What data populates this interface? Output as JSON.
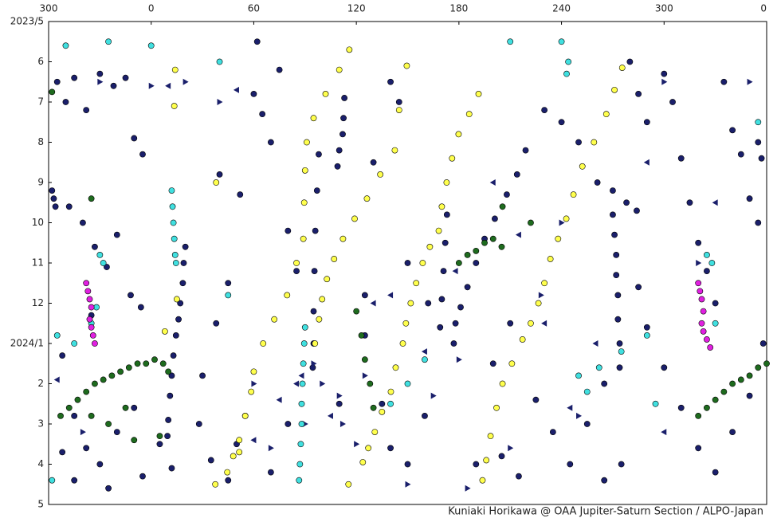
{
  "chart_data": {
    "type": "scatter",
    "caption": "Kuniaki Horikawa @ OAA Jupiter-Saturn Section / ALPO-Japan",
    "xlim": [
      -60,
      360
    ],
    "xticks": [
      {
        "value": -60,
        "label": "300"
      },
      0,
      60,
      120,
      180,
      240,
      {
        "value": 300,
        "label": "300"
      },
      {
        "value": 360,
        "label": "0"
      }
    ],
    "ylim": [
      0,
      12
    ],
    "y_inverted": true,
    "yticks": [
      {
        "value": 0,
        "label": "2023/5"
      },
      {
        "value": 1,
        "label": "6"
      },
      {
        "value": 2,
        "label": "7"
      },
      {
        "value": 3,
        "label": "8"
      },
      {
        "value": 4,
        "label": "9"
      },
      {
        "value": 5,
        "label": "10"
      },
      {
        "value": 6,
        "label": "11"
      },
      {
        "value": 7,
        "label": "12"
      },
      {
        "value": 8,
        "label": "2024/1"
      },
      {
        "value": 9,
        "label": "2"
      },
      {
        "value": 10,
        "label": "3"
      },
      {
        "value": 11,
        "label": "4"
      },
      {
        "value": 12,
        "label": "5"
      }
    ],
    "grid": false,
    "series": [
      {
        "color": "#1a1f6b",
        "marker": "circle",
        "x": [
          20,
          19,
          18.5,
          17,
          16,
          14.5,
          13,
          12,
          11,
          10,
          9.5,
          113,
          112.5,
          112,
          110,
          109,
          98,
          97,
          96,
          95.5,
          95,
          95,
          94.5,
          219,
          214,
          208,
          201,
          195,
          190,
          185,
          181,
          178,
          177,
          270,
          271,
          272,
          272,
          273,
          273,
          274,
          274,
          173,
          172,
          171,
          170,
          169,
          261,
          270,
          278,
          284,
          -58,
          -57,
          -56,
          -55,
          -50,
          -45,
          -38,
          -30,
          -22,
          -15,
          -10,
          -5,
          -48,
          -40,
          -33,
          -26,
          -20,
          -12,
          -6,
          -35,
          -52,
          -45,
          -38,
          -30,
          -20,
          -10,
          -5,
          -25,
          -45,
          -52,
          5,
          12,
          28,
          35,
          45,
          50,
          55,
          30,
          38,
          45,
          40,
          52,
          60,
          62,
          65,
          70,
          75,
          80,
          85,
          130,
          140,
          145,
          125,
          135,
          140,
          150,
          160,
          162,
          190,
          205,
          215,
          225,
          235,
          245,
          255,
          265,
          230,
          240,
          250,
          285,
          290,
          300,
          305,
          310,
          315,
          320,
          325,
          330,
          335,
          340,
          345,
          350,
          355,
          358,
          350,
          340,
          330,
          320,
          310,
          300,
          290,
          285,
          280,
          275,
          265,
          210,
          200,
          150,
          125,
          110,
          80,
          70,
          355,
          357
        ],
        "values": [
          5.6,
          6.0,
          6.5,
          7.0,
          7.4,
          7.8,
          8.3,
          8.8,
          9.3,
          9.9,
          10.3,
          1.9,
          2.4,
          2.8,
          3.2,
          3.6,
          3.3,
          4.2,
          5.2,
          6.2,
          7.2,
          8.0,
          8.6,
          3.2,
          3.8,
          4.3,
          4.9,
          5.4,
          6.0,
          6.6,
          7.1,
          7.5,
          8.0,
          4.8,
          5.3,
          5.8,
          6.3,
          6.8,
          7.4,
          8.0,
          8.6,
          4.8,
          5.5,
          6.2,
          6.9,
          7.6,
          4.0,
          4.2,
          4.5,
          4.7,
          4.2,
          4.4,
          4.6,
          1.5,
          2.0,
          1.4,
          2.2,
          1.3,
          1.6,
          1.4,
          2.9,
          3.3,
          4.6,
          5.0,
          5.6,
          6.1,
          5.3,
          6.8,
          7.1,
          7.3,
          8.3,
          9.8,
          10.6,
          11.0,
          10.2,
          9.6,
          11.3,
          11.6,
          11.4,
          10.7,
          10.5,
          11.1,
          10.0,
          10.9,
          11.4,
          10.5,
          9.8,
          8.8,
          7.5,
          6.5,
          3.8,
          4.3,
          1.8,
          0.5,
          2.3,
          3.0,
          1.2,
          5.2,
          6.2,
          3.5,
          1.5,
          2.0,
          7.8,
          9.5,
          10.6,
          11.0,
          9.8,
          7.0,
          11.0,
          10.8,
          11.3,
          9.4,
          10.2,
          11.0,
          10.0,
          9.0,
          2.2,
          2.5,
          3.0,
          1.8,
          2.5,
          1.3,
          2.0,
          3.4,
          4.5,
          5.5,
          6.2,
          7.0,
          1.5,
          2.7,
          3.3,
          4.4,
          5.0,
          8.0,
          9.3,
          10.2,
          11.2,
          10.6,
          9.6,
          8.6,
          7.6,
          6.6,
          1.0,
          11.0,
          11.4,
          7.5,
          8.5,
          6.0,
          6.8,
          9.5,
          10.0,
          11.2,
          3.0,
          3.4
        ]
      },
      {
        "color": "#1a1f6b",
        "marker": "triangle-right",
        "x": [
          -30,
          0,
          20,
          40,
          95,
          100,
          110,
          112,
          120,
          125,
          165,
          180,
          210,
          228,
          240,
          250,
          300,
          320,
          350,
          -40,
          60,
          70,
          90,
          150,
          185
        ],
        "values": [
          1.5,
          1.6,
          1.5,
          2.0,
          8.5,
          9.0,
          9.3,
          10.0,
          10.5,
          8.8,
          9.3,
          8.4,
          10.6,
          6.8,
          5.0,
          9.8,
          1.5,
          6.0,
          1.5,
          10.2,
          9.0,
          10.6,
          10.0,
          11.5,
          11.6
        ]
      },
      {
        "color": "#1a1f6b",
        "marker": "triangle-left",
        "x": [
          10,
          50,
          75,
          85,
          130,
          140,
          160,
          200,
          215,
          230,
          245,
          290,
          330,
          -55,
          60,
          88,
          105,
          178,
          260,
          300
        ],
        "values": [
          1.6,
          1.7,
          9.4,
          9.0,
          7.0,
          6.8,
          8.2,
          4.0,
          5.3,
          7.5,
          9.6,
          3.5,
          4.5,
          8.9,
          10.4,
          8.8,
          9.8,
          6.2,
          8.0,
          10.2
        ]
      },
      {
        "color": "#ffff4d",
        "marker": "circle",
        "x": [
          115.9,
          110,
          102,
          95,
          91,
          90,
          89.5,
          89,
          85,
          79.5,
          72,
          65.5,
          60,
          58.5,
          55,
          51.5,
          48,
          44.5,
          37.5,
          149.5,
          145,
          142.5,
          134,
          126.2,
          119,
          112.2,
          107,
          102.8,
          100,
          98.2,
          95.8,
          191.5,
          186,
          179.8,
          176,
          172.8,
          170,
          168.2,
          163,
          158.8,
          155,
          151.8,
          149,
          147.2,
          143,
          140.2,
          135,
          130.8,
          127,
          123.8,
          115.4,
          275.5,
          271,
          266.2,
          259,
          252.2,
          247,
          242.8,
          238,
          233.5,
          230,
          226.5,
          222,
          217.2,
          211,
          205.5,
          202,
          198.5,
          196,
          193.8,
          14,
          13.5,
          38,
          8,
          15,
          51.5
        ],
        "values": [
          0.7,
          1.2,
          1.8,
          2.4,
          3.0,
          3.7,
          4.5,
          5.4,
          6.0,
          6.8,
          7.4,
          8.0,
          8.7,
          9.2,
          9.8,
          10.4,
          10.8,
          11.2,
          11.5,
          1.1,
          2.2,
          3.2,
          3.8,
          4.4,
          4.9,
          5.4,
          5.9,
          6.4,
          6.9,
          7.4,
          8.0,
          1.8,
          2.3,
          2.8,
          3.4,
          4.0,
          4.6,
          5.2,
          5.6,
          6.0,
          6.5,
          7.0,
          7.5,
          8.0,
          8.6,
          9.2,
          9.7,
          10.2,
          10.6,
          10.95,
          11.5,
          1.15,
          1.7,
          2.3,
          3.0,
          3.6,
          4.3,
          4.9,
          5.4,
          5.9,
          6.5,
          7.0,
          7.5,
          7.9,
          8.5,
          9.0,
          9.6,
          10.3,
          10.9,
          11.4,
          1.2,
          2.1,
          4.0,
          7.7,
          6.9,
          10.7
        ]
      },
      {
        "color": "#1e6b1e",
        "marker": "circle",
        "x": [
          -53,
          -48,
          -43,
          -38,
          -33,
          -28,
          -23,
          -18,
          -13,
          -8,
          -3,
          2,
          7,
          10,
          -35,
          -25,
          -15,
          5,
          -10,
          320,
          325,
          330,
          335,
          340,
          345,
          350,
          355,
          360,
          180,
          185,
          190,
          195,
          200,
          205,
          120,
          123,
          125,
          128,
          130,
          -58,
          205.5,
          222,
          -35
        ],
        "values": [
          9.8,
          9.6,
          9.4,
          9.2,
          9.0,
          8.9,
          8.8,
          8.7,
          8.6,
          8.5,
          8.5,
          8.4,
          8.5,
          8.7,
          9.8,
          10.0,
          9.6,
          10.3,
          10.4,
          9.8,
          9.6,
          9.4,
          9.2,
          9.0,
          8.9,
          8.8,
          8.6,
          8.5,
          6.0,
          5.8,
          5.7,
          5.5,
          5.4,
          5.6,
          7.2,
          7.8,
          8.4,
          9.0,
          9.6,
          1.75,
          4.6,
          5.0,
          4.4
        ]
      },
      {
        "color": "#40e0e0",
        "marker": "circle",
        "x": [
          90,
          89.5,
          89,
          88.5,
          88,
          88,
          87.5,
          87,
          86.5,
          12,
          12.5,
          13,
          13.5,
          14,
          14.5,
          -30,
          -28,
          -32,
          -35,
          -55,
          -58,
          -50,
          -25,
          0,
          210,
          240,
          244,
          243,
          250,
          255,
          262,
          140,
          150,
          160,
          275,
          290,
          295,
          325,
          328,
          330,
          355,
          -45,
          40,
          45
        ],
        "values": [
          7.6,
          8.0,
          8.5,
          9.0,
          9.5,
          10.0,
          10.5,
          11.0,
          11.4,
          4.2,
          4.6,
          5.0,
          5.4,
          5.8,
          6.0,
          5.8,
          6.0,
          7.1,
          7.5,
          7.8,
          11.4,
          0.6,
          0.5,
          0.6,
          0.5,
          0.5,
          1.0,
          1.3,
          8.8,
          9.2,
          8.6,
          9.5,
          9.0,
          8.4,
          8.2,
          7.8,
          9.5,
          5.8,
          6.0,
          7.5,
          2.5,
          8.0,
          1.0,
          6.8
        ]
      },
      {
        "color": "#e020e0",
        "marker": "circle",
        "x": [
          -38,
          -37,
          -36,
          -35,
          -36,
          -35,
          -34,
          -33,
          320,
          321,
          322,
          323,
          322,
          323,
          325,
          327
        ],
        "values": [
          6.5,
          6.7,
          6.9,
          7.1,
          7.4,
          7.6,
          7.8,
          8.0,
          6.5,
          6.7,
          6.9,
          7.2,
          7.5,
          7.7,
          7.9,
          8.1
        ]
      }
    ]
  }
}
